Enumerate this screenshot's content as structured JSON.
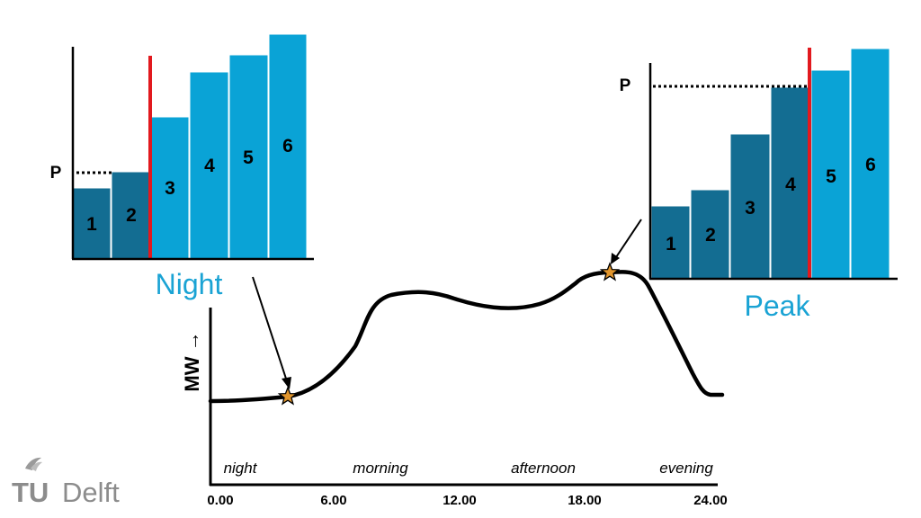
{
  "colors": {
    "dark_bar": "#136d92",
    "light_bar": "#0aa3d6",
    "marginal_line": "#e2191e",
    "title_blue": "#1aa3d4",
    "star_fill": "#e1952c",
    "curve": "#000000"
  },
  "night_panel": {
    "title": "Night",
    "price_label": "P",
    "bar_labels": [
      "1",
      "2",
      "3",
      "4",
      "5",
      "6"
    ],
    "committed_bars": 2
  },
  "peak_panel": {
    "title": "Peak",
    "price_label": "P",
    "bar_labels": [
      "1",
      "2",
      "3",
      "4",
      "5",
      "6"
    ],
    "committed_bars": 4
  },
  "load_curve": {
    "y_label": "MW →",
    "periods": [
      "night",
      "morning",
      "afternoon",
      "evening"
    ],
    "x_ticks": [
      "0.00",
      "6.00",
      "12.00",
      "18.00",
      "24.00"
    ],
    "markers": [
      "night-marker-star",
      "peak-marker-star"
    ]
  },
  "logo": {
    "text_tu": "TU",
    "text_delft": "Delft"
  }
}
